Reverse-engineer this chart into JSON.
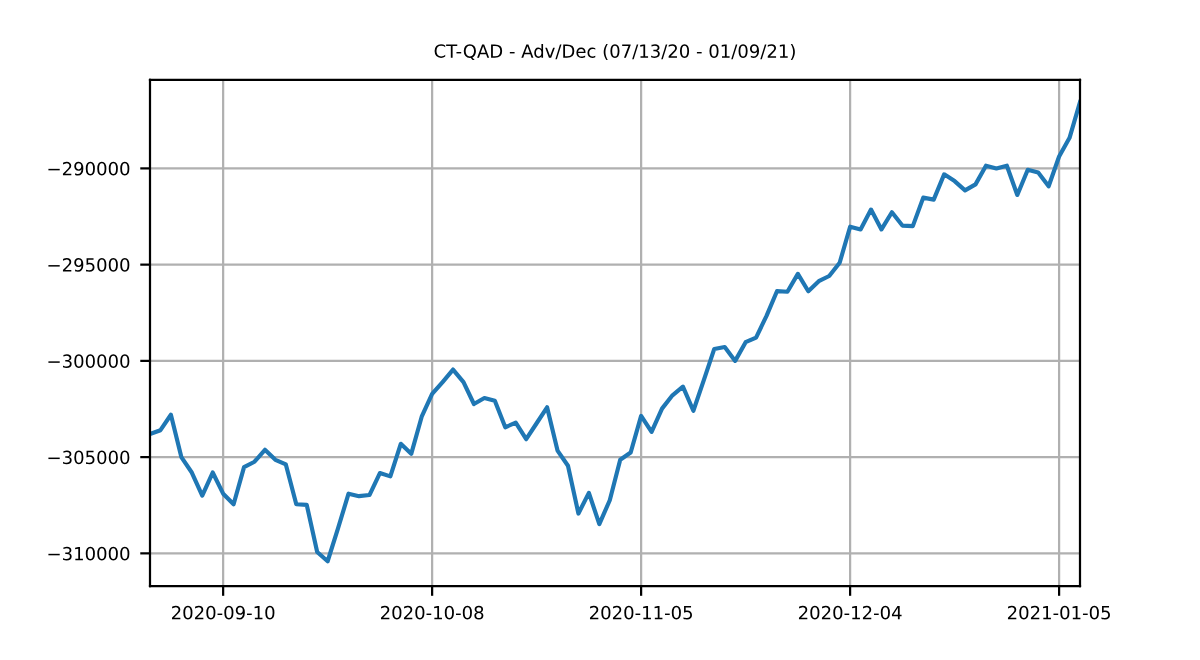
{
  "chart_data": {
    "type": "line",
    "title": "CT-QAD - Adv/Dec (07/13/20 - 01/09/21)",
    "categories": [
      null,
      null,
      null,
      null,
      null,
      null,
      null,
      "2020-09-10",
      null,
      null,
      null,
      null,
      null,
      null,
      null,
      null,
      null,
      null,
      null,
      null,
      null,
      null,
      null,
      null,
      null,
      null,
      null,
      "2020-10-08",
      null,
      null,
      null,
      null,
      null,
      null,
      null,
      null,
      null,
      null,
      null,
      null,
      null,
      null,
      null,
      null,
      null,
      null,
      null,
      "2020-11-05",
      null,
      null,
      null,
      null,
      null,
      null,
      null,
      null,
      null,
      null,
      null,
      null,
      null,
      null,
      null,
      null,
      null,
      null,
      null,
      "2020-12-04",
      null,
      null,
      null,
      null,
      null,
      null,
      null,
      null,
      null,
      null,
      null,
      null,
      null,
      null,
      null,
      null,
      null,
      null,
      null,
      "2021-01-05",
      null,
      null
    ],
    "series": [
      {
        "color": "#1f77b4",
        "values": [
          -303800,
          -303600,
          -302800,
          -305000,
          -305800,
          -307000,
          -305800,
          -306900,
          -307450,
          -305520,
          -305240,
          -304620,
          -305140,
          -305380,
          -307450,
          -307480,
          -309930,
          -310410,
          -308690,
          -306900,
          -307030,
          -306970,
          -305830,
          -306000,
          -304310,
          -304830,
          -302900,
          -301720,
          -301100,
          -300450,
          -301100,
          -302240,
          -301930,
          -302070,
          -303450,
          -303210,
          -304070,
          -303240,
          -302410,
          -304660,
          -305450,
          -307930,
          -306860,
          -308480,
          -307240,
          -305140,
          -304760,
          -302860,
          -303690,
          -302480,
          -301790,
          -301340,
          -302590,
          -301000,
          -299380,
          -299280,
          -300000,
          -299030,
          -298790,
          -297660,
          -296380,
          -296410,
          -295480,
          -296380,
          -295860,
          -295590,
          -294900,
          -293030,
          -293170,
          -292140,
          -293170,
          -292280,
          -292970,
          -293000,
          -291520,
          -291620,
          -290310,
          -290660,
          -291140,
          -290830,
          -289860,
          -290000,
          -289860,
          -291380,
          -290070,
          -290210,
          -290930,
          -289380,
          -288410,
          -286550
        ]
      }
    ],
    "ylim": [
      -311700,
      -285400
    ],
    "yticks": [
      {
        "value": -310000,
        "label": "−310000"
      },
      {
        "value": -305000,
        "label": "−305000"
      },
      {
        "value": -300000,
        "label": "−300000"
      },
      {
        "value": -295000,
        "label": "−295000"
      },
      {
        "value": -290000,
        "label": "−290000"
      }
    ],
    "grid": true,
    "marker": "none",
    "line_style": "solid"
  }
}
